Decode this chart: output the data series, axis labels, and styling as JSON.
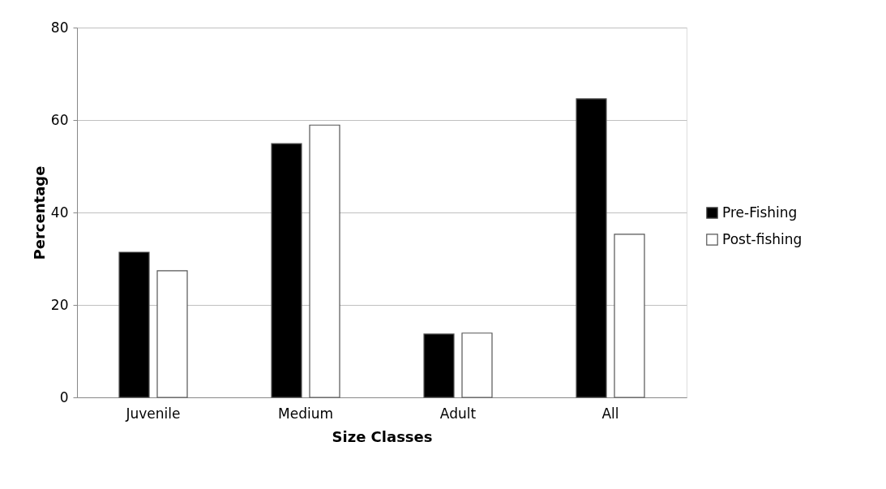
{
  "chart_data": {
    "type": "bar",
    "xlabel": "Size Classes",
    "ylabel": "Percentage",
    "categories": [
      "Juvenile",
      "Medium",
      "Adult",
      "All"
    ],
    "series": [
      {
        "name": "Pre-Fishing",
        "color": "#000000",
        "values": [
          31.4,
          54.9,
          13.7,
          64.6
        ]
      },
      {
        "name": "Post-fishing",
        "color": "#ffffff",
        "values": [
          27.4,
          58.9,
          13.9,
          35.3
        ]
      }
    ],
    "ylim": [
      0,
      80
    ],
    "yticks": [
      0,
      20,
      40,
      60,
      80
    ],
    "grid": "y",
    "legend": "right"
  }
}
